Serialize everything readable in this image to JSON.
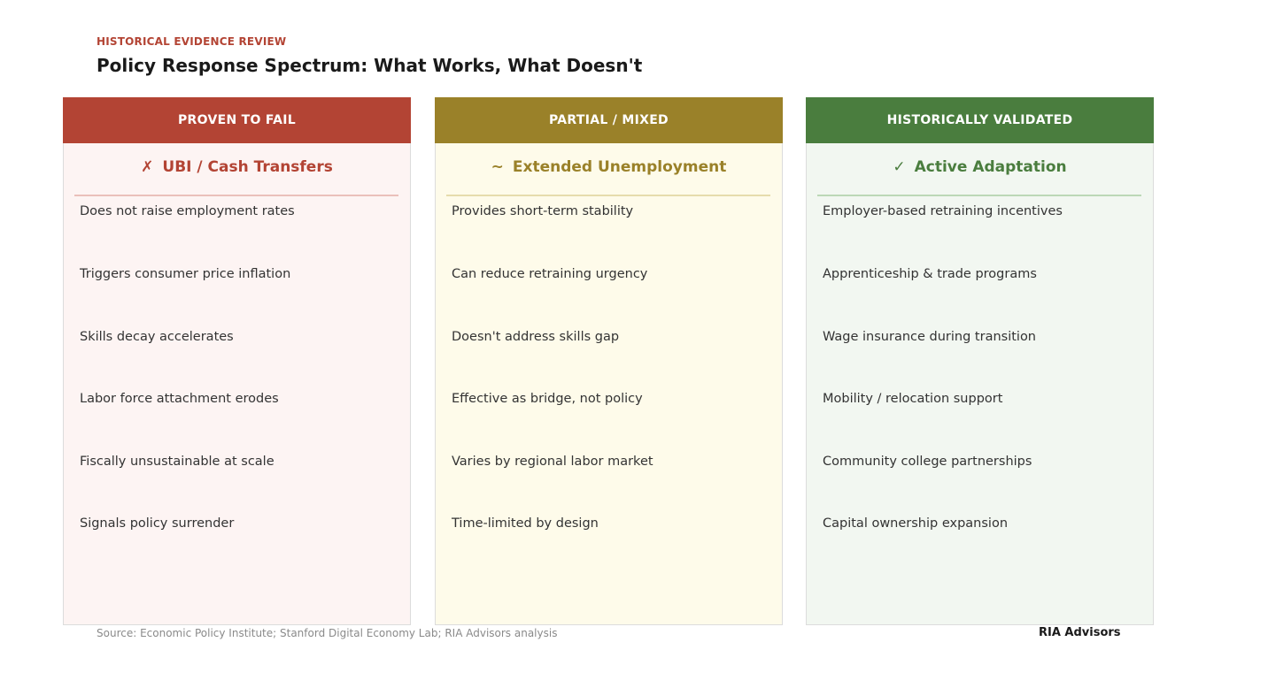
{
  "header": {
    "eyebrow": "HISTORICAL EVIDENCE REVIEW",
    "title": "Policy Response Spectrum: What Works, What Doesn't"
  },
  "columns": [
    {
      "header": "PROVEN TO FAIL",
      "mark": "✗",
      "subtitle": "UBI / Cash Transfers",
      "accent": "#b34434",
      "items": [
        "Does not raise employment rates",
        "Triggers consumer price inflation",
        "Skills decay accelerates",
        "Labor force attachment erodes",
        "Fiscally unsustainable at scale",
        "Signals policy surrender"
      ]
    },
    {
      "header": "PARTIAL / MIXED",
      "mark": "~",
      "subtitle": "Extended Unemployment",
      "accent": "#9a8129",
      "items": [
        "Provides short-term stability",
        "Can reduce retraining urgency",
        "Doesn't address skills gap",
        "Effective as bridge, not policy",
        "Varies by regional labor market",
        "Time-limited by design"
      ]
    },
    {
      "header": "HISTORICALLY VALIDATED",
      "mark": "✓",
      "subtitle": "Active Adaptation",
      "accent": "#4a7d3e",
      "items": [
        "Employer-based retraining incentives",
        "Apprenticeship & trade programs",
        "Wage insurance during transition",
        "Mobility / relocation support",
        "Community college partnerships",
        "Capital ownership expansion"
      ]
    }
  ],
  "footer": {
    "source": "Source: Economic Policy Institute; Stanford Digital Economy Lab; RIA Advisors analysis",
    "brand": "RIA Advisors"
  }
}
